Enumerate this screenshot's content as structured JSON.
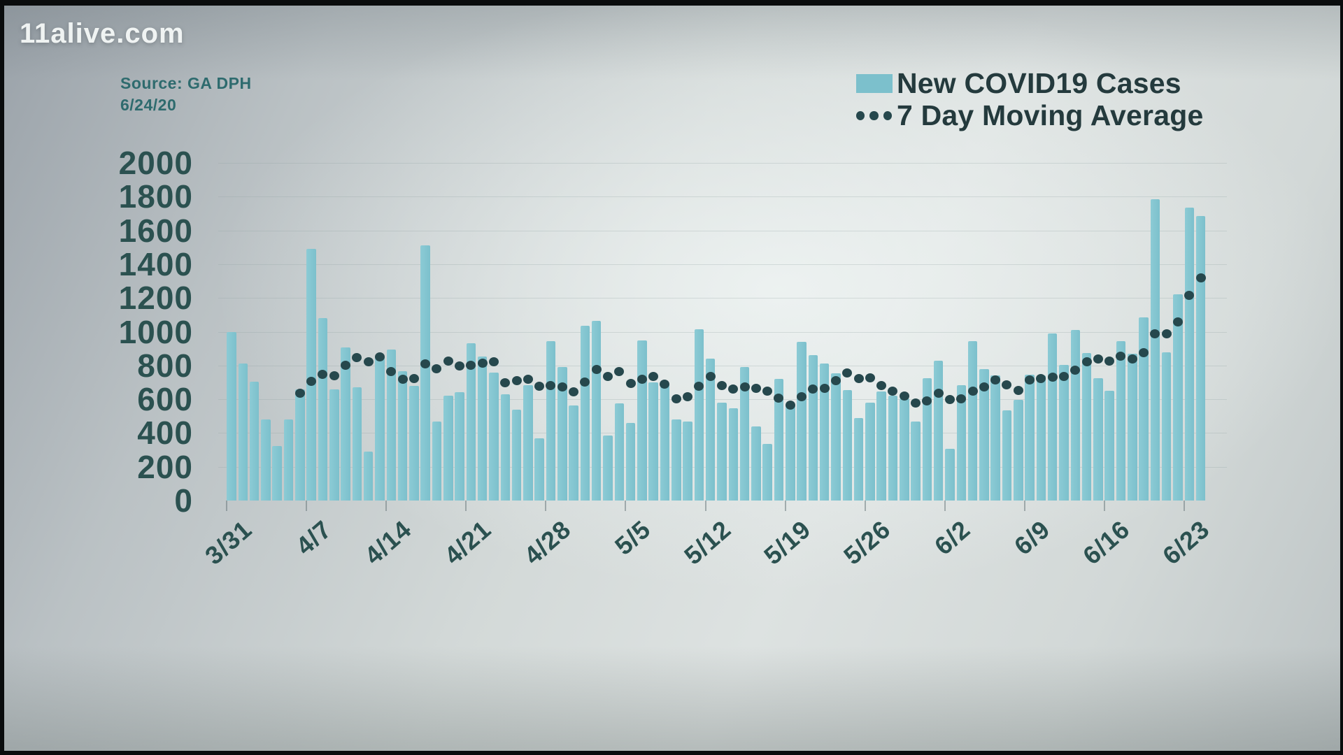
{
  "branding": {
    "logo_text": "11alive.com"
  },
  "source": {
    "line1": "Source: GA DPH",
    "line2": "6/24/20"
  },
  "legend": {
    "cases_label": "New COVID19 Cases",
    "avg_label": "7 Day Moving Average"
  },
  "colors": {
    "bar": "#7cc0cc",
    "bar_edge_highlight": "#8ccbd5",
    "ma_dot": "#26484d",
    "axis_text": "#2b5150",
    "legend_text": "#243a3d",
    "source_text": "#2e6b6e",
    "background_center": "#dde2e1",
    "background_corner": "#9aa2a9"
  },
  "chart_data": {
    "type": "bar",
    "title": "",
    "xlabel": "",
    "ylabel": "",
    "ylim": [
      0,
      2000
    ],
    "ytick_step": 200,
    "ytick_labels": [
      "0",
      "200",
      "400",
      "600",
      "800",
      "1000",
      "1200",
      "1400",
      "1600",
      "1800",
      "2000"
    ],
    "grid": "faint horizontal gridlines",
    "legend_position": "top-right",
    "categories": [
      "3/31",
      "4/1",
      "4/2",
      "4/3",
      "4/4",
      "4/5",
      "4/6",
      "4/7",
      "4/8",
      "4/9",
      "4/10",
      "4/11",
      "4/12",
      "4/13",
      "4/14",
      "4/15",
      "4/16",
      "4/17",
      "4/18",
      "4/19",
      "4/20",
      "4/21",
      "4/22",
      "4/23",
      "4/24",
      "4/25",
      "4/26",
      "4/27",
      "4/28",
      "4/29",
      "4/30",
      "5/1",
      "5/2",
      "5/3",
      "5/4",
      "5/5",
      "5/6",
      "5/7",
      "5/8",
      "5/9",
      "5/10",
      "5/11",
      "5/12",
      "5/13",
      "5/14",
      "5/15",
      "5/16",
      "5/17",
      "5/18",
      "5/19",
      "5/20",
      "5/21",
      "5/22",
      "5/23",
      "5/24",
      "5/25",
      "5/26",
      "5/27",
      "5/28",
      "5/29",
      "5/30",
      "5/31",
      "6/1",
      "6/2",
      "6/3",
      "6/4",
      "6/5",
      "6/6",
      "6/7",
      "6/8",
      "6/9",
      "6/10",
      "6/11",
      "6/12",
      "6/13",
      "6/14",
      "6/15",
      "6/16",
      "6/17",
      "6/18",
      "6/19",
      "6/20",
      "6/21",
      "6/22",
      "6/23",
      "6/24"
    ],
    "xtick_labels": [
      "3/31",
      "4/7",
      "4/14",
      "4/21",
      "4/28",
      "5/5",
      "5/12",
      "5/19",
      "5/26",
      "6/2",
      "6/9",
      "6/16",
      "6/23"
    ],
    "series": [
      {
        "name": "New COVID19 Cases",
        "type": "bar",
        "values": [
          1000,
          810,
          705,
          480,
          325,
          480,
          660,
          1490,
          1080,
          660,
          905,
          670,
          290,
          855,
          895,
          765,
          680,
          1510,
          470,
          620,
          640,
          930,
          855,
          760,
          630,
          540,
          685,
          370,
          945,
          790,
          565,
          1035,
          1065,
          385,
          575,
          460,
          950,
          700,
          695,
          480,
          470,
          1015,
          840,
          580,
          545,
          790,
          440,
          335,
          720,
          565,
          940,
          860,
          810,
          755,
          655,
          490,
          580,
          645,
          620,
          605,
          470,
          725,
          830,
          305,
          685,
          945,
          780,
          740,
          535,
          595,
          745,
          740,
          990,
          805,
          1010,
          875,
          725,
          650,
          945,
          870,
          1085,
          1785,
          880,
          1220,
          1735,
          1685
        ]
      },
      {
        "name": "7 Day Moving Average",
        "type": "dotted-line",
        "note": "trailing 7-day mean of daily cases, plotted from 4/6 onward",
        "start_index": 6,
        "values": [
          637,
          707,
          746,
          739,
          800,
          849,
          822,
          850,
          765,
          720,
          723,
          809,
          781,
          828,
          797,
          802,
          815,
          824,
          699,
          709,
          718,
          679,
          681,
          672,
          644,
          702,
          777,
          734,
          764,
          694,
          717,
          736,
          688,
          604,
          616,
          679,
          734,
          681,
          659,
          672,
          666,
          647,
          605,
          566,
          617,
          662,
          665,
          710,
          756,
          723,
          725,
          683,
          649,
          619,
          579,
          589,
          637,
          598,
          604,
          650,
          675,
          714,
          686,
          653,
          716,
          724,
          730,
          734,
          772,
          821,
          839,
          826,
          855,
          838,
          878,
          989,
          989,
          1060,
          1215,
          1321
        ]
      }
    ]
  }
}
